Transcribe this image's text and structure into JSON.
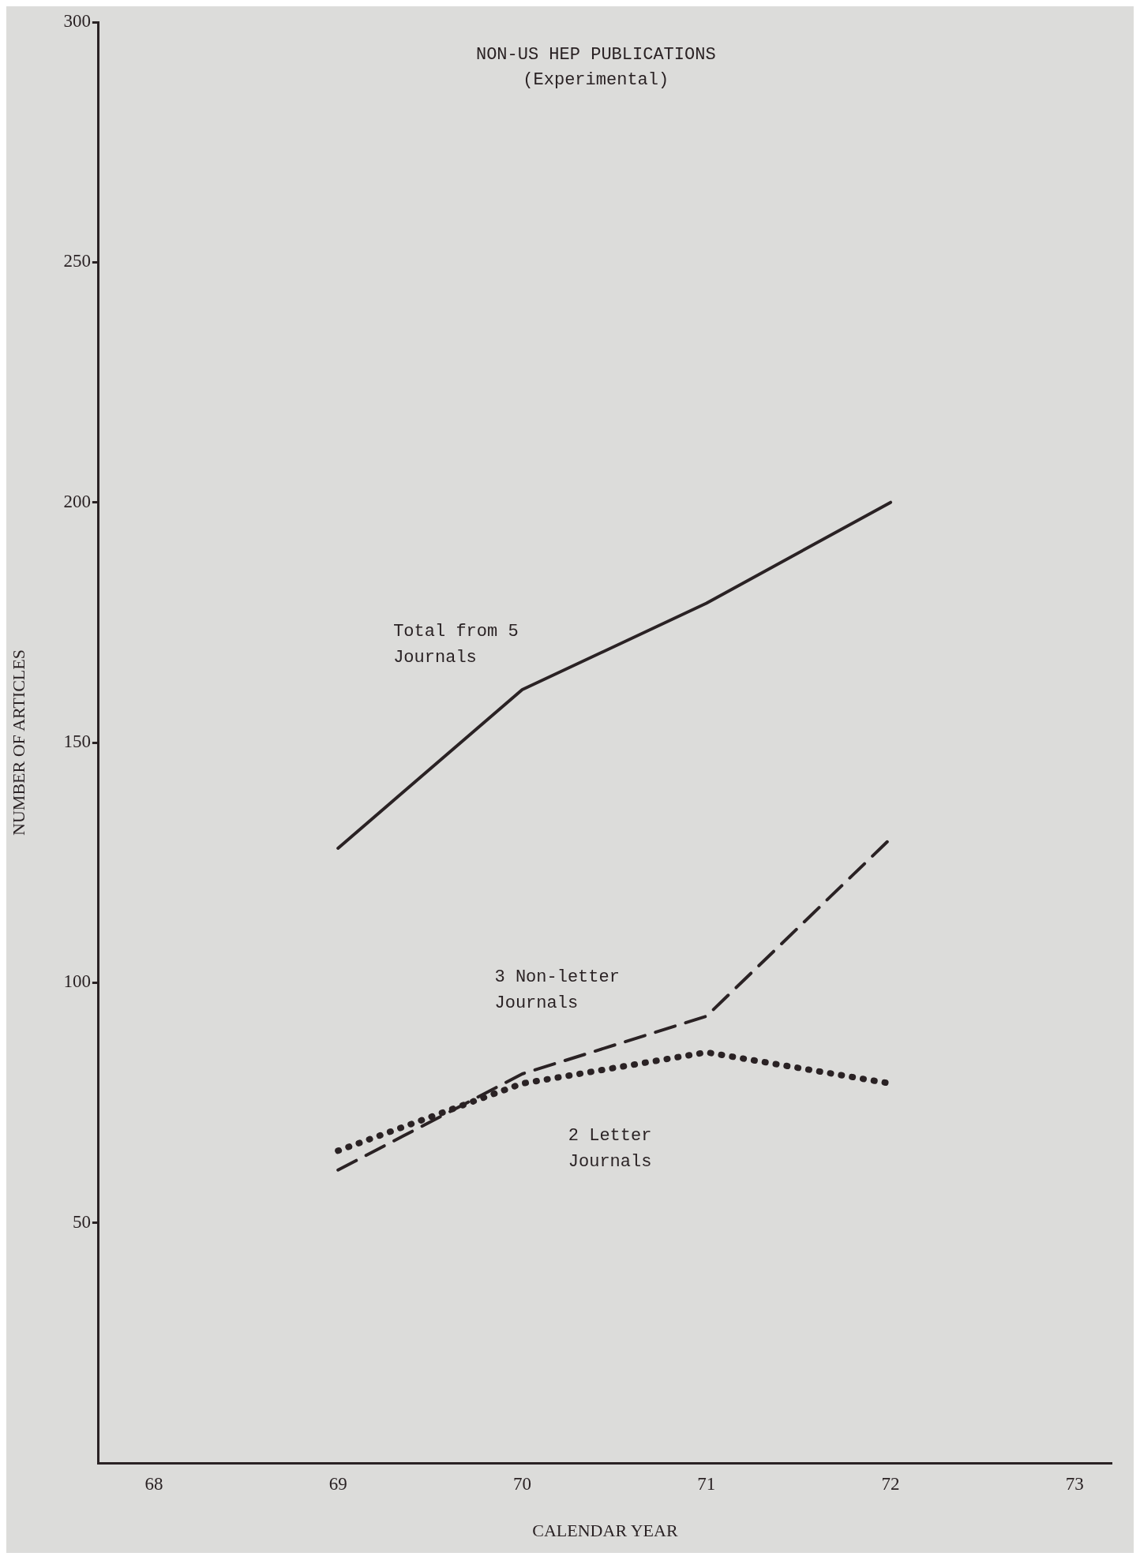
{
  "chart_data": {
    "type": "line",
    "title": "NON-US HEP PUBLICATIONS",
    "subtitle": "(Experimental)",
    "xlabel": "CALENDAR YEAR",
    "ylabel": "NUMBER OF ARTICLES",
    "x": [
      69,
      70,
      71,
      72
    ],
    "series": [
      {
        "name": "Total from 5 Journals",
        "color": "#2a2224",
        "line_style": "solid",
        "values": [
          128,
          161,
          179,
          200
        ]
      },
      {
        "name": "3 Non-letter Journals",
        "color": "#2a2224",
        "line_style": "dashed",
        "values": [
          61,
          81,
          93,
          130
        ]
      },
      {
        "name": "2 Letter Journals",
        "color": "#2a2224",
        "line_style": "dotted",
        "values": [
          65,
          79,
          85.5,
          79
        ]
      }
    ],
    "xlim": [
      67.7,
      73.2
    ],
    "xticks": [
      68,
      69,
      70,
      71,
      72,
      73
    ],
    "ylim": [
      0,
      300
    ],
    "yticks": [
      50,
      100,
      150,
      200,
      250,
      300
    ],
    "grid": false,
    "legend": false,
    "marker": "none"
  }
}
